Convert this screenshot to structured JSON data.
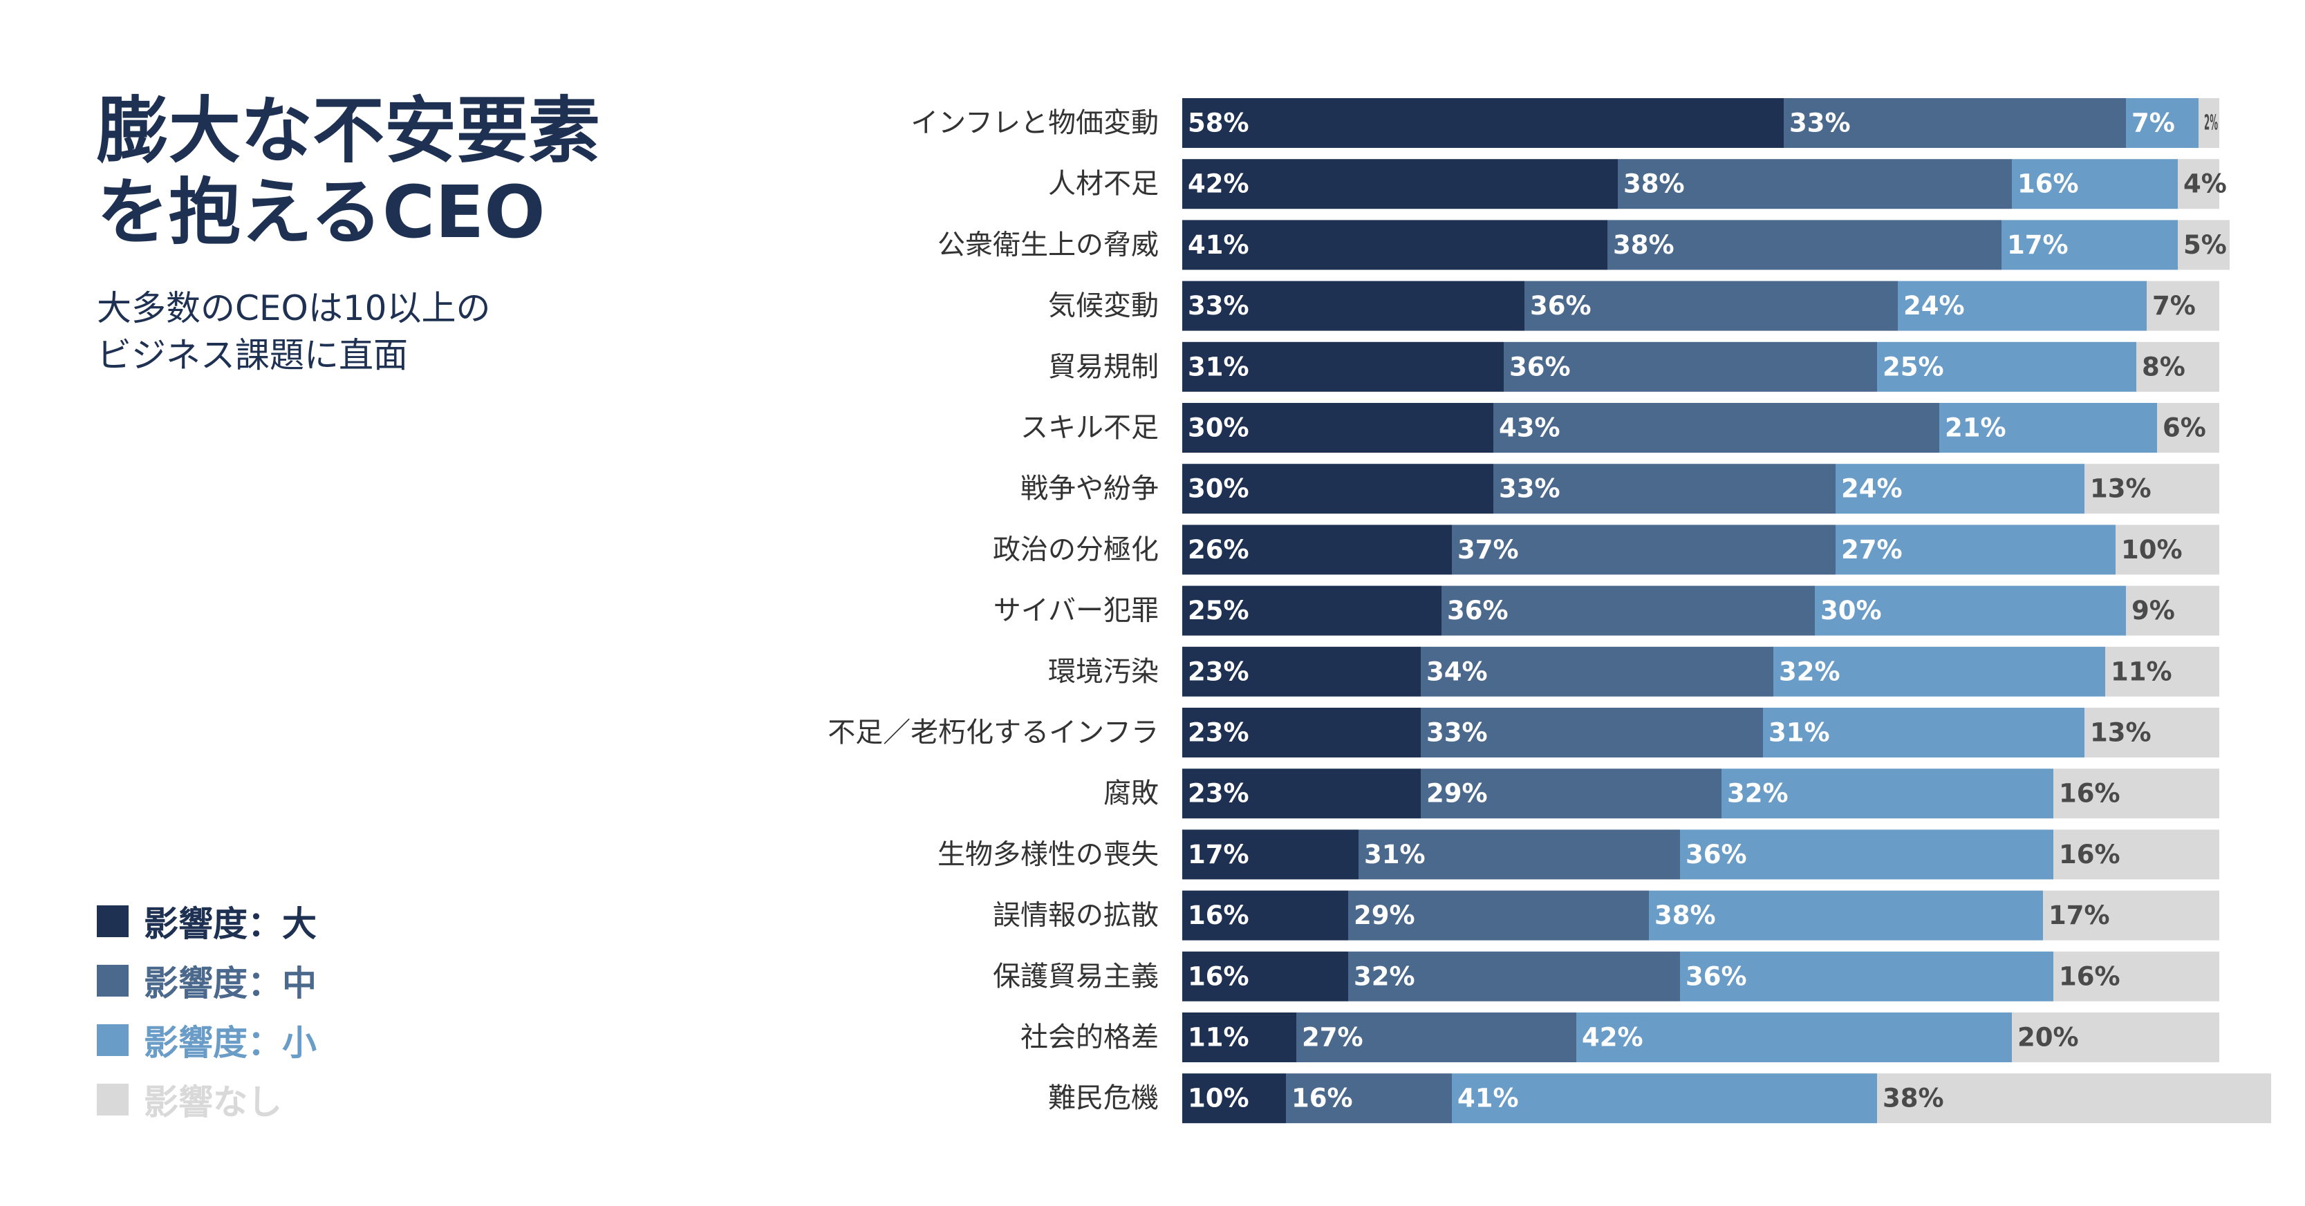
{
  "title": "膨大な不安要素\nを抱えるCEO",
  "subtitle": "大多数のCEOは10以上の\nビジネス課題に直面",
  "colors": {
    "high": "#1f3152",
    "medium": "#4b698c",
    "low": "#6a9cc8",
    "none": "#d9d9d9"
  },
  "legend": [
    {
      "label": "影響度：大",
      "color": "#1f3152",
      "text_color": "#1f3152"
    },
    {
      "label": "影響度：中",
      "color": "#4b698c",
      "text_color": "#4b698c"
    },
    {
      "label": "影響度：小",
      "color": "#6a9cc8",
      "text_color": "#6a9cc8"
    },
    {
      "label": "影響なし",
      "color": "#d9d9d9",
      "text_color": "#d9d9d9"
    }
  ],
  "chart_data": {
    "type": "bar",
    "orientation": "horizontal",
    "stacked": true,
    "title": "膨大な不安要素を抱えるCEO",
    "xlim": [
      0,
      100
    ],
    "categories": [
      "インフレと物価変動",
      "人材不足",
      "公衆衛生上の脅威",
      "気候変動",
      "貿易規制",
      "スキル不足",
      "戦争や紛争",
      "政治の分極化",
      "サイバー犯罪",
      "環境汚染",
      "不足／老朽化するインフラ",
      "腐敗",
      "生物多様性の喪失",
      "誤情報の拡散",
      "保護貿易主義",
      "社会的格差",
      "難民危機"
    ],
    "series": [
      {
        "name": "影響度：大",
        "values": [
          58,
          42,
          41,
          33,
          31,
          30,
          30,
          26,
          25,
          23,
          23,
          23,
          17,
          16,
          16,
          11,
          10
        ]
      },
      {
        "name": "影響度：中",
        "values": [
          33,
          38,
          38,
          36,
          36,
          43,
          33,
          37,
          36,
          34,
          33,
          29,
          31,
          29,
          32,
          27,
          16
        ]
      },
      {
        "name": "影響度：小",
        "values": [
          7,
          16,
          17,
          24,
          25,
          21,
          24,
          27,
          30,
          32,
          31,
          32,
          36,
          38,
          36,
          42,
          41
        ]
      },
      {
        "name": "影響なし",
        "values": [
          2,
          4,
          5,
          7,
          8,
          6,
          13,
          10,
          9,
          11,
          13,
          16,
          16,
          17,
          16,
          20,
          38
        ]
      }
    ]
  }
}
